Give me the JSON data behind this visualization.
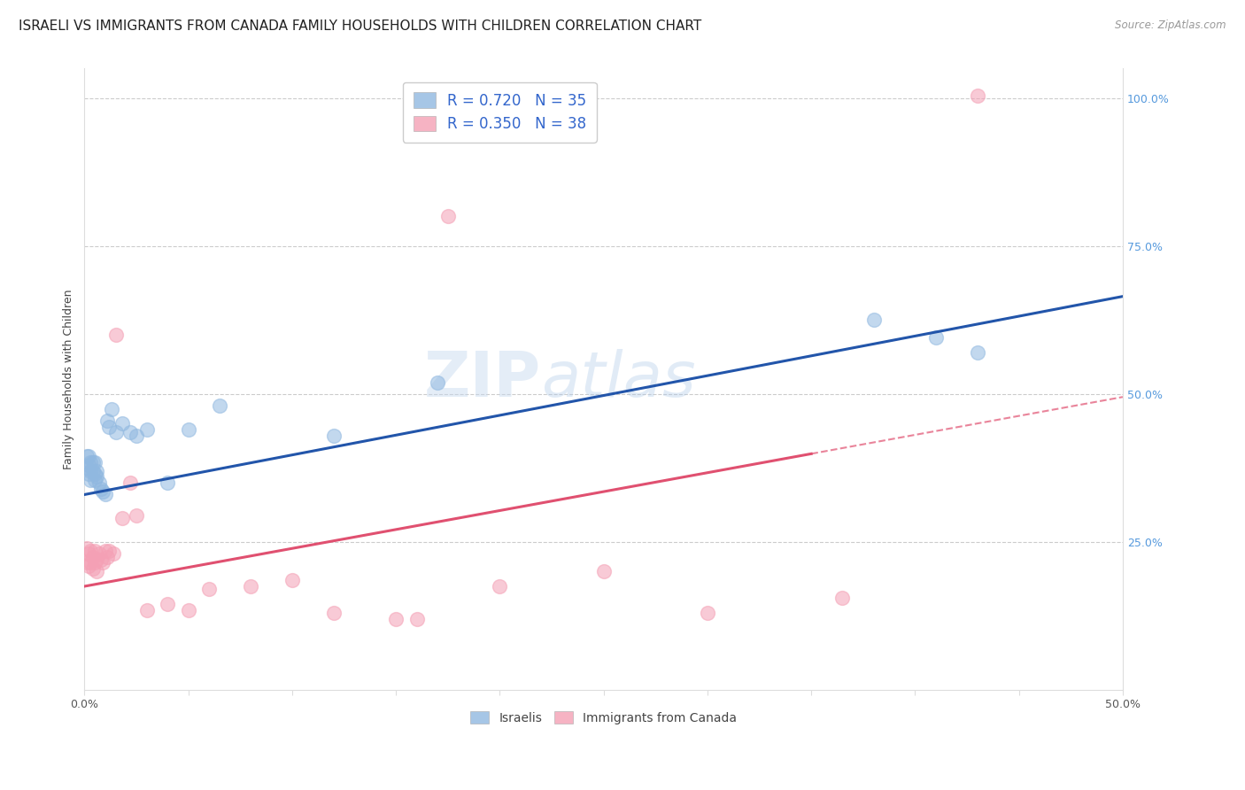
{
  "title": "ISRAELI VS IMMIGRANTS FROM CANADA FAMILY HOUSEHOLDS WITH CHILDREN CORRELATION CHART",
  "source": "Source: ZipAtlas.com",
  "ylabel": "Family Households with Children",
  "xlim": [
    0.0,
    0.5
  ],
  "ylim": [
    0.0,
    1.05
  ],
  "israelis_color": "#90b8e0",
  "canada_color": "#f4a0b5",
  "trend_israeli_color": "#2255aa",
  "trend_canada_color": "#e05070",
  "watermark": "ZIPatlas",
  "bg_color": "#ffffff",
  "grid_color": "#cccccc",
  "title_fontsize": 11,
  "axis_fontsize": 9,
  "israeli_x": [
    0.001,
    0.001,
    0.002,
    0.002,
    0.002,
    0.003,
    0.003,
    0.003,
    0.004,
    0.004,
    0.005,
    0.005,
    0.005,
    0.006,
    0.006,
    0.007,
    0.008,
    0.009,
    0.01,
    0.011,
    0.012,
    0.013,
    0.015,
    0.018,
    0.022,
    0.025,
    0.03,
    0.04,
    0.05,
    0.065,
    0.12,
    0.17,
    0.38,
    0.41,
    0.43
  ],
  "israeli_y": [
    0.375,
    0.395,
    0.395,
    0.38,
    0.365,
    0.385,
    0.37,
    0.355,
    0.37,
    0.385,
    0.385,
    0.365,
    0.355,
    0.37,
    0.36,
    0.35,
    0.34,
    0.335,
    0.33,
    0.455,
    0.445,
    0.475,
    0.435,
    0.45,
    0.435,
    0.43,
    0.44,
    0.35,
    0.44,
    0.48,
    0.43,
    0.52,
    0.625,
    0.595,
    0.57
  ],
  "canada_x": [
    0.001,
    0.001,
    0.002,
    0.002,
    0.003,
    0.003,
    0.004,
    0.004,
    0.005,
    0.005,
    0.006,
    0.006,
    0.007,
    0.008,
    0.009,
    0.01,
    0.011,
    0.012,
    0.014,
    0.015,
    0.018,
    0.022,
    0.025,
    0.03,
    0.04,
    0.05,
    0.06,
    0.08,
    0.1,
    0.12,
    0.15,
    0.16,
    0.175,
    0.2,
    0.25,
    0.3,
    0.365,
    0.43
  ],
  "canada_y": [
    0.24,
    0.215,
    0.23,
    0.21,
    0.235,
    0.215,
    0.225,
    0.205,
    0.235,
    0.215,
    0.22,
    0.2,
    0.23,
    0.22,
    0.215,
    0.235,
    0.225,
    0.235,
    0.23,
    0.6,
    0.29,
    0.35,
    0.295,
    0.135,
    0.145,
    0.135,
    0.17,
    0.175,
    0.185,
    0.13,
    0.12,
    0.12,
    0.8,
    0.175,
    0.2,
    0.13,
    0.155,
    1.005
  ],
  "trend_isr_x0": 0.0,
  "trend_isr_y0": 0.33,
  "trend_isr_x1": 0.5,
  "trend_isr_y1": 0.665,
  "trend_can_x0": 0.0,
  "trend_can_y0": 0.175,
  "trend_can_x1": 0.5,
  "trend_can_y1": 0.495,
  "trend_can_solid_end": 0.35
}
